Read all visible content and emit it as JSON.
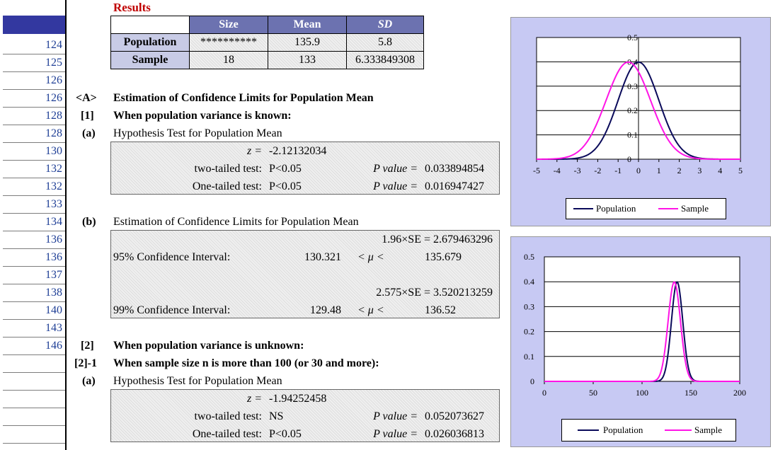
{
  "results_label": "Results",
  "row_numbers": [
    "124",
    "125",
    "126",
    "126",
    "128",
    "128",
    "130",
    "132",
    "132",
    "133",
    "134",
    "136",
    "136",
    "137",
    "138",
    "140",
    "143",
    "146"
  ],
  "results_table": {
    "headers": [
      "Size",
      "Mean",
      "SD"
    ],
    "rows": [
      {
        "label": "Population",
        "size": "**********",
        "mean": "135.9",
        "sd": "5.8"
      },
      {
        "label": "Sample",
        "size": "18",
        "mean": "133",
        "sd": "6.333849308"
      }
    ]
  },
  "sectionA": {
    "marker": "<A>",
    "title": "Estimation of Confidence Limits for Population Mean",
    "part1": {
      "marker": "[1]",
      "title": "When population variance is known:"
    },
    "a": {
      "marker": "(a)",
      "title": "Hypothesis Test for Population Mean",
      "z_label": "z =",
      "z_value": "-2.12132034",
      "two_label": "two-tailed test:",
      "two_result": "P<0.05",
      "two_p_label": "P value =",
      "two_p": "0.033894854",
      "one_label": "One-tailed test:",
      "one_result": "P<0.05",
      "one_p_label": "P value =",
      "one_p": "0.016947427"
    },
    "b": {
      "marker": "(b)",
      "title": "Estimation of Confidence Limits for Population Mean",
      "se95": "1.96×SE = 2.679463296",
      "ci95_label": "95% Confidence Interval:",
      "ci95_low": "130.321",
      "ci95_mu": "< μ <",
      "ci95_high": "135.679",
      "se99": "2.575×SE = 3.520213259",
      "ci99_label": "99% Confidence Interval:",
      "ci99_low": "129.48",
      "ci99_mu": "< μ <",
      "ci99_high": "136.52"
    }
  },
  "part2": {
    "marker": "[2]",
    "title": "When population variance is unknown:"
  },
  "part21": {
    "marker": "[2]-1",
    "title": "When sample size n is more than 100 (or 30 and more):",
    "a": {
      "marker": "(a)",
      "title": "Hypothesis Test for Population Mean",
      "z_label": "z =",
      "z_value": "-1.94252458",
      "two_label": "two-tailed test:",
      "two_result": "NS",
      "two_p_label": "P value =",
      "two_p": "0.052073627",
      "one_label": "One-tailed test:",
      "one_result": "P<0.05",
      "one_p_label": "P value =",
      "one_p": "0.026036813"
    }
  },
  "colors": {
    "population": "#0a0a5a",
    "sample": "#ff14e6",
    "panel": "#c7c9f3"
  },
  "chart_data": [
    {
      "type": "line",
      "xlim": [
        -5,
        5
      ],
      "ylim": [
        0,
        0.5
      ],
      "xticks": [
        "-5",
        "-4",
        "-3",
        "-2",
        "-1",
        "0",
        "1",
        "2",
        "3",
        "4",
        "5"
      ],
      "yticks": [
        "0",
        "0.1",
        "0.2",
        "0.3",
        "0.4",
        "0.5"
      ],
      "series": [
        {
          "name": "Population",
          "mean": 0,
          "sd": 1
        },
        {
          "name": "Sample",
          "mean": -0.5,
          "sd": 1.09
        }
      ],
      "legend": "bottom"
    },
    {
      "type": "line",
      "xlim": [
        0,
        200
      ],
      "ylim": [
        0,
        0.5
      ],
      "xticks": [
        "0",
        "50",
        "100",
        "150",
        "200"
      ],
      "yticks": [
        "0",
        "0.1",
        "0.2",
        "0.3",
        "0.4",
        "0.5"
      ],
      "series": [
        {
          "name": "Population",
          "mean": 135.9,
          "sd": 5.8
        },
        {
          "name": "Sample",
          "mean": 133,
          "sd": 6.333849308
        }
      ],
      "legend": "bottom"
    }
  ]
}
